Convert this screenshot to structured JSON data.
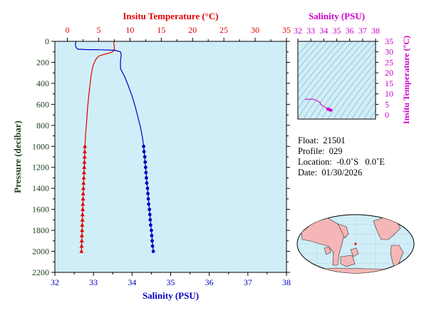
{
  "chart_data": [
    {
      "type": "line",
      "title": "",
      "ylabel": "Pressure (decibar)",
      "y_reversed": true,
      "ylim": [
        0,
        2200
      ],
      "yticks": [
        0,
        200,
        400,
        600,
        800,
        1000,
        1200,
        1400,
        1600,
        1800,
        2000,
        2200
      ],
      "axes": {
        "temperature": {
          "label": "Insitu Temperature (°C)",
          "position": "top",
          "range": [
            -2,
            35
          ],
          "ticks": [
            0,
            5,
            10,
            15,
            20,
            25,
            30,
            35
          ],
          "color": "#e00000"
        },
        "salinity": {
          "label": "Salinity (PSU)",
          "position": "bottom",
          "range": [
            32,
            38
          ],
          "ticks": [
            32,
            33,
            34,
            35,
            36,
            37,
            38
          ],
          "color": "#0000c0"
        }
      },
      "series": [
        {
          "axis": "temperature",
          "color": "#e00000",
          "marker": "triangle",
          "line": [
            [
              7.4,
              0
            ],
            [
              7.5,
              50
            ],
            [
              7.5,
              85
            ],
            [
              7.2,
              100
            ],
            [
              6.5,
              115
            ],
            [
              5.8,
              125
            ],
            [
              5.0,
              140
            ],
            [
              4.5,
              175
            ],
            [
              4.1,
              230
            ],
            [
              3.8,
              320
            ],
            [
              3.6,
              420
            ],
            [
              3.4,
              530
            ],
            [
              3.2,
              650
            ],
            [
              3.05,
              780
            ],
            [
              2.9,
              900
            ],
            [
              2.8,
              1000
            ],
            [
              2.7,
              1200
            ],
            [
              2.55,
              1400
            ],
            [
              2.45,
              1600
            ],
            [
              2.35,
              1800
            ],
            [
              2.25,
              2000
            ]
          ],
          "points": [
            [
              2.8,
              1000
            ],
            [
              2.77,
              1050
            ],
            [
              2.75,
              1100
            ],
            [
              2.72,
              1150
            ],
            [
              2.7,
              1200
            ],
            [
              2.66,
              1250
            ],
            [
              2.62,
              1300
            ],
            [
              2.58,
              1350
            ],
            [
              2.55,
              1400
            ],
            [
              2.52,
              1450
            ],
            [
              2.5,
              1500
            ],
            [
              2.47,
              1550
            ],
            [
              2.45,
              1600
            ],
            [
              2.42,
              1650
            ],
            [
              2.4,
              1700
            ],
            [
              2.37,
              1750
            ],
            [
              2.35,
              1800
            ],
            [
              2.32,
              1850
            ],
            [
              2.3,
              1900
            ],
            [
              2.27,
              1950
            ],
            [
              2.25,
              2000
            ]
          ]
        },
        {
          "axis": "salinity",
          "color": "#0000c0",
          "marker": "circle",
          "line": [
            [
              32.55,
              0
            ],
            [
              32.53,
              30
            ],
            [
              32.55,
              60
            ],
            [
              32.6,
              75
            ],
            [
              32.8,
              78
            ],
            [
              33.2,
              80
            ],
            [
              33.55,
              85
            ],
            [
              33.7,
              100
            ],
            [
              33.72,
              130
            ],
            [
              33.7,
              180
            ],
            [
              33.7,
              260
            ],
            [
              33.8,
              330
            ],
            [
              33.9,
              420
            ],
            [
              34.0,
              520
            ],
            [
              34.08,
              620
            ],
            [
              34.15,
              720
            ],
            [
              34.22,
              820
            ],
            [
              34.27,
              920
            ],
            [
              34.3,
              1000
            ],
            [
              34.35,
              1200
            ],
            [
              34.4,
              1400
            ],
            [
              34.45,
              1600
            ],
            [
              34.5,
              1800
            ],
            [
              34.55,
              2000
            ]
          ],
          "points": [
            [
              34.3,
              1000
            ],
            [
              34.31,
              1050
            ],
            [
              34.33,
              1100
            ],
            [
              34.34,
              1150
            ],
            [
              34.35,
              1200
            ],
            [
              34.36,
              1250
            ],
            [
              34.37,
              1300
            ],
            [
              34.38,
              1350
            ],
            [
              34.4,
              1400
            ],
            [
              34.41,
              1450
            ],
            [
              34.42,
              1500
            ],
            [
              34.43,
              1550
            ],
            [
              34.45,
              1600
            ],
            [
              34.46,
              1650
            ],
            [
              34.47,
              1700
            ],
            [
              34.48,
              1750
            ],
            [
              34.5,
              1800
            ],
            [
              34.51,
              1850
            ],
            [
              34.52,
              1900
            ],
            [
              34.53,
              1950
            ],
            [
              34.55,
              2000
            ]
          ]
        }
      ]
    },
    {
      "type": "scatter",
      "xlabel": "Salinity (PSU)",
      "ylabel": "Insitu Temperature (°C)",
      "xlim": [
        32,
        38
      ],
      "ylim": [
        -2,
        35
      ],
      "xticks": [
        32,
        33,
        34,
        35,
        36,
        37,
        38
      ],
      "yticks": [
        0,
        5,
        10,
        15,
        20,
        25,
        30,
        35
      ],
      "color": "#cc00cc",
      "line": [
        [
          32.55,
          7.4
        ],
        [
          33.2,
          7.5
        ],
        [
          33.7,
          6.0
        ],
        [
          33.8,
          4.8
        ],
        [
          34.0,
          4.0
        ],
        [
          34.15,
          3.5
        ],
        [
          34.3,
          2.8
        ],
        [
          34.4,
          2.55
        ],
        [
          34.55,
          2.25
        ]
      ],
      "points": [
        [
          34.3,
          2.8
        ],
        [
          34.33,
          2.75
        ],
        [
          34.35,
          2.7
        ],
        [
          34.38,
          2.6
        ],
        [
          34.4,
          2.55
        ],
        [
          34.43,
          2.5
        ],
        [
          34.45,
          2.45
        ],
        [
          34.48,
          2.37
        ],
        [
          34.5,
          2.35
        ],
        [
          34.53,
          2.27
        ],
        [
          34.55,
          2.25
        ]
      ]
    }
  ],
  "info": {
    "float": "Float:  21501",
    "profile": "Profile:  029",
    "location": "Location:  -0.0˚S   0.0˚E",
    "date": "Date:  01/30/2026"
  },
  "map": {
    "land_color": "#f4b6b6",
    "ocean_color": "#d0eef8",
    "float_position": [
      0.0,
      0.0
    ]
  },
  "colors": {
    "plot_background": "#d0eef8",
    "temperature": "#e00000",
    "salinity": "#0000c0",
    "ts": "#cc00cc",
    "pressure_axis": "#204020"
  }
}
